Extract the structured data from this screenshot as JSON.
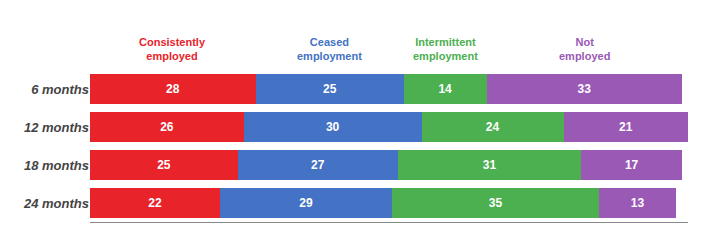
{
  "chart_data": {
    "type": "bar",
    "orientation": "horizontal",
    "stacked": true,
    "categories": [
      "6 months",
      "12 months",
      "18 months",
      "24 months"
    ],
    "series": [
      {
        "name": "Consistently\nemployed",
        "color": "#e8232a",
        "values": [
          28,
          26,
          25,
          22
        ]
      },
      {
        "name": "Ceased\nemployment",
        "color": "#4472c4",
        "values": [
          25,
          30,
          27,
          29
        ]
      },
      {
        "name": "Intermittent\nemployment",
        "color": "#4caf50",
        "values": [
          14,
          24,
          31,
          35
        ]
      },
      {
        "name": "Not\nemployed",
        "color": "#9b59b6",
        "values": [
          33,
          21,
          17,
          13
        ]
      }
    ],
    "xlim": [
      0,
      101
    ],
    "data_labels": true,
    "tick_labels": "y",
    "grid": false
  }
}
